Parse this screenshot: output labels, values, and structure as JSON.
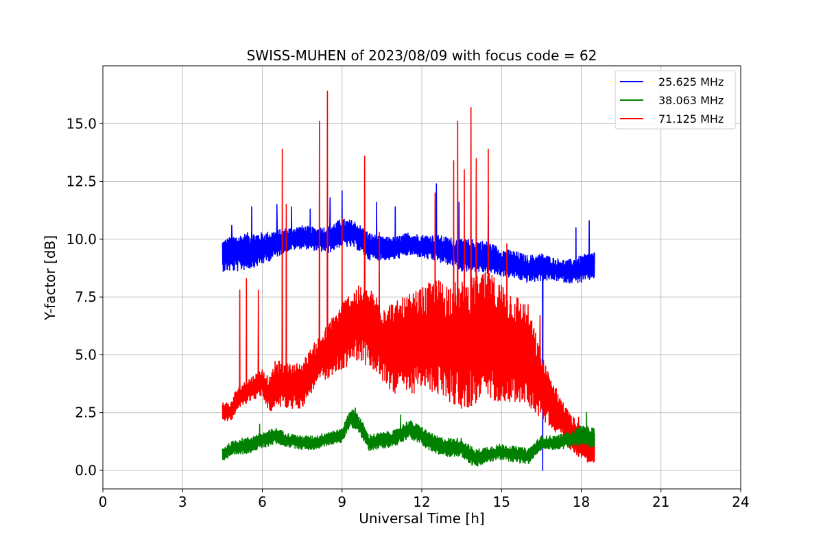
{
  "chart_data": {
    "type": "line",
    "title": "SWISS-MUHEN of 2023/08/09 with focus code = 62",
    "xlabel": "Universal Time [h]",
    "ylabel": "Y-factor [dB]",
    "xlim": [
      0,
      24
    ],
    "ylim": [
      -0.8,
      17.5
    ],
    "xticks": [
      0,
      3,
      6,
      9,
      12,
      15,
      18,
      21,
      24
    ],
    "xtick_labels": [
      "0",
      "3",
      "6",
      "9",
      "12",
      "15",
      "18",
      "21",
      "24"
    ],
    "yticks": [
      0,
      2.5,
      5,
      7.5,
      10,
      12.5,
      15
    ],
    "ytick_labels": [
      "0.0",
      "2.5",
      "5.0",
      "7.5",
      "10.0",
      "12.5",
      "15.0"
    ],
    "grid": true,
    "legend_position": "top-right",
    "series": [
      {
        "name": "25.625 MHz",
        "color": "#0000ff",
        "x": [
          4.5,
          5.0,
          5.5,
          6.0,
          6.5,
          7.0,
          7.5,
          8.0,
          8.5,
          9.0,
          9.5,
          10.0,
          10.5,
          11.0,
          11.5,
          12.0,
          12.5,
          13.0,
          13.5,
          14.0,
          14.5,
          15.0,
          15.5,
          16.0,
          16.5,
          17.0,
          17.5,
          18.0,
          18.5
        ],
        "y": [
          9.3,
          9.4,
          9.5,
          9.6,
          9.8,
          10.0,
          10.1,
          10.0,
          10.0,
          10.3,
          10.2,
          9.7,
          9.6,
          9.6,
          9.8,
          9.7,
          9.6,
          9.5,
          9.3,
          9.3,
          9.2,
          9.0,
          8.9,
          8.7,
          8.8,
          8.7,
          8.6,
          8.7,
          8.9
        ],
        "spread": [
          0.7,
          0.8,
          0.8,
          0.7,
          0.6,
          0.5,
          0.5,
          0.5,
          0.6,
          0.6,
          0.6,
          0.6,
          0.5,
          0.5,
          0.5,
          0.5,
          0.6,
          0.6,
          0.7,
          0.7,
          0.7,
          0.6,
          0.6,
          0.6,
          0.6,
          0.5,
          0.5,
          0.6,
          0.6
        ],
        "spikes": [
          {
            "x": 4.85,
            "y": 10.6
          },
          {
            "x": 5.6,
            "y": 11.4
          },
          {
            "x": 6.55,
            "y": 11.5
          },
          {
            "x": 7.1,
            "y": 11.4
          },
          {
            "x": 7.8,
            "y": 11.3
          },
          {
            "x": 8.55,
            "y": 11.8
          },
          {
            "x": 9.0,
            "y": 12.1
          },
          {
            "x": 10.3,
            "y": 11.6
          },
          {
            "x": 11.0,
            "y": 11.4
          },
          {
            "x": 12.55,
            "y": 12.4
          },
          {
            "x": 13.4,
            "y": 11.6
          },
          {
            "x": 14.5,
            "y": 11.5
          },
          {
            "x": 16.55,
            "y": 0.0
          },
          {
            "x": 17.8,
            "y": 10.5
          },
          {
            "x": 18.3,
            "y": 10.8
          }
        ]
      },
      {
        "name": "38.063 MHz",
        "color": "#008000",
        "x": [
          4.5,
          5.0,
          5.5,
          6.0,
          6.5,
          7.0,
          7.5,
          8.0,
          8.5,
          9.0,
          9.3,
          9.6,
          10.0,
          10.5,
          11.0,
          11.5,
          12.0,
          12.5,
          13.0,
          13.5,
          14.0,
          14.5,
          15.0,
          15.5,
          16.0,
          16.5,
          17.0,
          17.5,
          18.0,
          18.5
        ],
        "y": [
          0.7,
          1.0,
          1.1,
          1.3,
          1.5,
          1.3,
          1.2,
          1.2,
          1.4,
          1.5,
          2.3,
          2.1,
          1.2,
          1.3,
          1.4,
          1.8,
          1.5,
          1.1,
          1.0,
          1.0,
          0.5,
          0.7,
          0.8,
          0.7,
          0.6,
          1.2,
          1.2,
          1.3,
          1.5,
          1.4
        ],
        "spread": [
          0.3,
          0.35,
          0.35,
          0.35,
          0.35,
          0.3,
          0.3,
          0.3,
          0.3,
          0.3,
          0.4,
          0.4,
          0.35,
          0.35,
          0.35,
          0.4,
          0.4,
          0.4,
          0.4,
          0.4,
          0.4,
          0.35,
          0.35,
          0.35,
          0.35,
          0.3,
          0.3,
          0.35,
          0.45,
          0.45
        ],
        "spikes": [
          {
            "x": 5.9,
            "y": 2.0
          },
          {
            "x": 9.5,
            "y": 2.7
          },
          {
            "x": 11.2,
            "y": 2.4
          },
          {
            "x": 18.2,
            "y": 2.5
          }
        ]
      },
      {
        "name": "71.125 MHz",
        "color": "#ff0000",
        "x": [
          4.5,
          4.8,
          5.0,
          5.5,
          6.0,
          6.3,
          6.5,
          7.0,
          7.5,
          8.0,
          8.5,
          9.0,
          9.5,
          10.0,
          10.5,
          11.0,
          11.5,
          12.0,
          12.5,
          13.0,
          13.5,
          14.0,
          14.5,
          15.0,
          15.5,
          16.0,
          16.5,
          17.0,
          17.5,
          18.0,
          18.5
        ],
        "y": [
          2.6,
          2.5,
          3.0,
          3.5,
          3.8,
          3.2,
          3.8,
          3.6,
          3.7,
          4.6,
          5.2,
          5.8,
          6.4,
          6.2,
          5.6,
          5.3,
          5.4,
          5.7,
          5.8,
          5.6,
          5.4,
          5.6,
          5.8,
          5.6,
          5.3,
          5.0,
          3.6,
          2.7,
          1.8,
          1.2,
          0.9
        ],
        "spread": [
          0.4,
          0.4,
          0.5,
          0.5,
          0.6,
          0.8,
          1.0,
          1.0,
          1.0,
          1.0,
          1.2,
          1.5,
          1.6,
          1.7,
          1.8,
          2.0,
          2.2,
          2.2,
          2.5,
          2.6,
          2.8,
          2.8,
          2.8,
          2.6,
          2.4,
          2.2,
          1.4,
          1.0,
          0.8,
          0.7,
          0.7
        ],
        "spikes": [
          {
            "x": 5.15,
            "y": 7.8
          },
          {
            "x": 5.4,
            "y": 8.3
          },
          {
            "x": 5.85,
            "y": 7.8
          },
          {
            "x": 6.75,
            "y": 13.9
          },
          {
            "x": 6.9,
            "y": 11.5
          },
          {
            "x": 8.15,
            "y": 15.1
          },
          {
            "x": 8.45,
            "y": 16.4
          },
          {
            "x": 9.0,
            "y": 10.9
          },
          {
            "x": 9.85,
            "y": 13.6
          },
          {
            "x": 10.4,
            "y": 10.3
          },
          {
            "x": 12.5,
            "y": 12.0
          },
          {
            "x": 13.2,
            "y": 13.4
          },
          {
            "x": 13.35,
            "y": 15.1
          },
          {
            "x": 13.6,
            "y": 13.0
          },
          {
            "x": 13.85,
            "y": 15.7
          },
          {
            "x": 14.05,
            "y": 13.5
          },
          {
            "x": 14.5,
            "y": 13.9
          },
          {
            "x": 15.2,
            "y": 9.8
          },
          {
            "x": 16.45,
            "y": 6.7
          },
          {
            "x": 17.9,
            "y": 2.3
          }
        ]
      }
    ]
  }
}
